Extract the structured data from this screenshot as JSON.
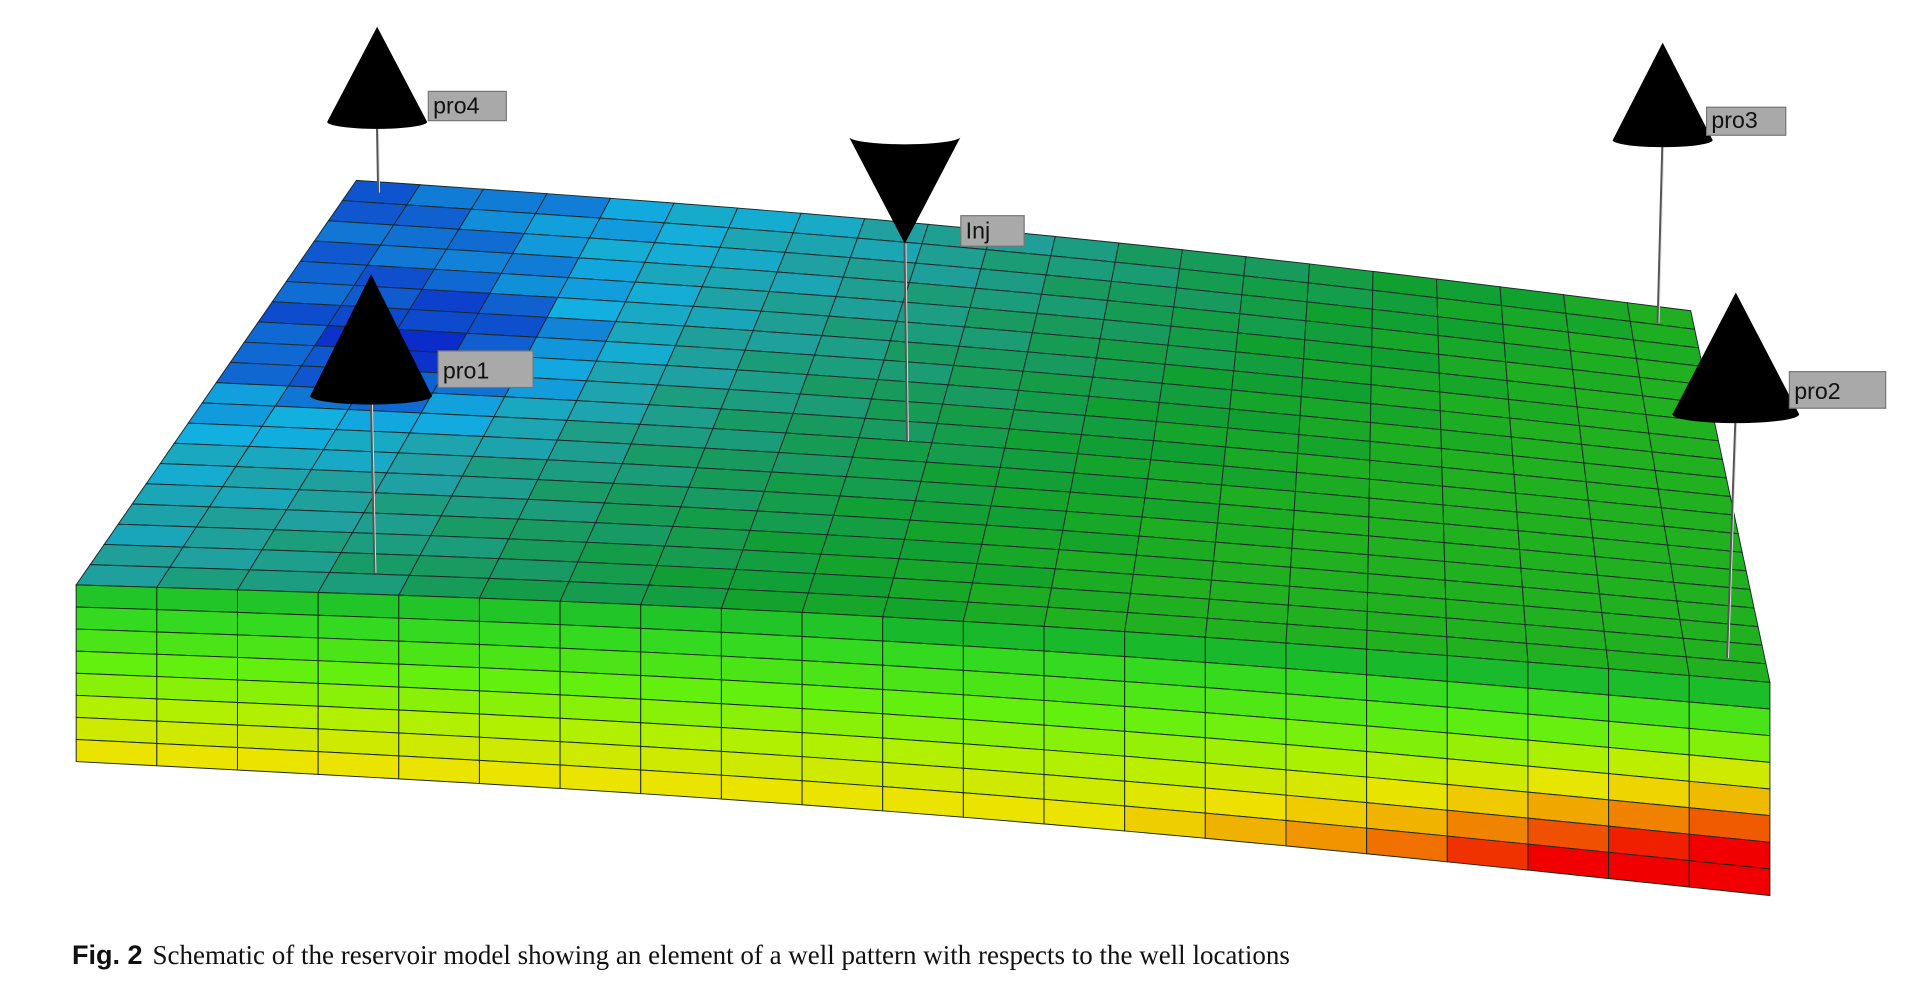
{
  "figure": {
    "wells": [
      {
        "label": "pro4"
      },
      {
        "label": "pro1"
      },
      {
        "label": "Inj"
      },
      {
        "label": "pro3"
      },
      {
        "label": "pro2"
      }
    ],
    "caption": {
      "number": "Fig. 2",
      "text": "Schematic of the reservoir model showing an element of a well pattern with respects to the well locations"
    }
  }
}
